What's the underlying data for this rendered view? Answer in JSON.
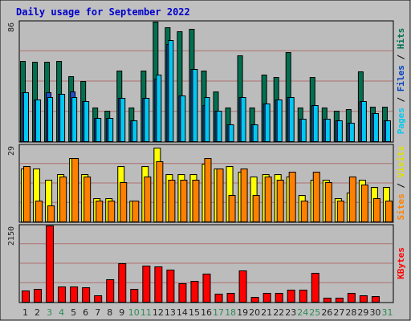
{
  "title": "Daily usage for September 2022",
  "colors": {
    "background": "#c0c0c0",
    "plot_background": "#bcbcbc",
    "title": "#0000cc",
    "axis_label": "#222222",
    "weekend_label": "#2e8b57",
    "hits": "#007050",
    "files": "#00b0ff",
    "pages": "#00c8f0",
    "visits": "#ffff00",
    "sites": "#ff8000",
    "kbytes": "#ff0000"
  },
  "chart_data": [
    {
      "type": "bar",
      "panel": "hits-files-pages",
      "ymax_label": "86",
      "ylim": [
        0,
        86
      ],
      "categories": [
        "1",
        "2",
        "3",
        "4",
        "5",
        "6",
        "7",
        "8",
        "9",
        "10",
        "11",
        "12",
        "13",
        "14",
        "15",
        "16",
        "17",
        "18",
        "19",
        "20",
        "21",
        "22",
        "23",
        "24",
        "25",
        "26",
        "27",
        "28",
        "29",
        "30",
        "31"
      ],
      "legend": [
        {
          "text": "Pages",
          "color": "#00c8f0"
        },
        {
          "text": "Files",
          "color": "#0040c0"
        },
        {
          "text": "Hits",
          "color": "#007050"
        }
      ],
      "series": [
        {
          "name": "Hits",
          "color": "#007050",
          "values": [
            58,
            57,
            57,
            58,
            47,
            43,
            24,
            22,
            51,
            24,
            51,
            86,
            82,
            79,
            81,
            51,
            36,
            24,
            62,
            24,
            48,
            46,
            64,
            24,
            46,
            24,
            22,
            23,
            50,
            25,
            25
          ]
        },
        {
          "name": "Files",
          "color": "#2050d0",
          "values": [
            35,
            30,
            35,
            34,
            36,
            29,
            17,
            17,
            31,
            15,
            31,
            45,
            70,
            33,
            52,
            26,
            22,
            12,
            32,
            12,
            27,
            30,
            32,
            16,
            26,
            16,
            15,
            13,
            29,
            20,
            15
          ]
        },
        {
          "name": "Pages",
          "color": "#00c8f0",
          "values": [
            35,
            30,
            32,
            34,
            32,
            29,
            17,
            17,
            31,
            15,
            31,
            48,
            73,
            33,
            52,
            32,
            22,
            12,
            32,
            12,
            27,
            30,
            32,
            16,
            26,
            16,
            15,
            13,
            29,
            20,
            15
          ]
        }
      ]
    },
    {
      "type": "bar",
      "panel": "visits-sites",
      "ymax_label": "29",
      "ylim": [
        0,
        29
      ],
      "legend": [
        {
          "text": "Sites",
          "color": "#ff8000"
        },
        {
          "text": "Visits",
          "color": "#e0e000"
        }
      ],
      "series": [
        {
          "name": "Visits",
          "color": "#ffff00",
          "values": [
            20,
            20,
            16,
            18,
            24,
            18,
            9,
            9,
            21,
            8,
            21,
            28,
            18,
            18,
            18,
            22,
            20,
            21,
            19,
            17,
            18,
            18,
            17,
            10,
            16,
            16,
            9,
            11,
            16,
            13,
            13
          ]
        },
        {
          "name": "Sites",
          "color": "#ff8000",
          "values": [
            21,
            8,
            6,
            17,
            24,
            17,
            8,
            8,
            15,
            8,
            17,
            23,
            16,
            16,
            16,
            24,
            20,
            10,
            20,
            10,
            17,
            16,
            19,
            8,
            19,
            15,
            8,
            17,
            14,
            9,
            8
          ]
        }
      ]
    },
    {
      "type": "bar",
      "panel": "kbytes",
      "ymax_label": "2150",
      "ylim": [
        0,
        2150
      ],
      "legend": [
        {
          "text": "KBytes",
          "color": "#ff0000"
        }
      ],
      "series": [
        {
          "name": "KBytes",
          "color": "#ff0000",
          "values": [
            320,
            360,
            2150,
            420,
            420,
            400,
            180,
            640,
            1090,
            370,
            1010,
            1000,
            900,
            520,
            580,
            790,
            220,
            260,
            890,
            130,
            260,
            240,
            330,
            330,
            820,
            120,
            110,
            260,
            180,
            150,
            0
          ]
        }
      ]
    }
  ],
  "weekend_days": [
    3,
    4,
    10,
    11,
    17,
    18,
    24,
    25,
    31
  ]
}
